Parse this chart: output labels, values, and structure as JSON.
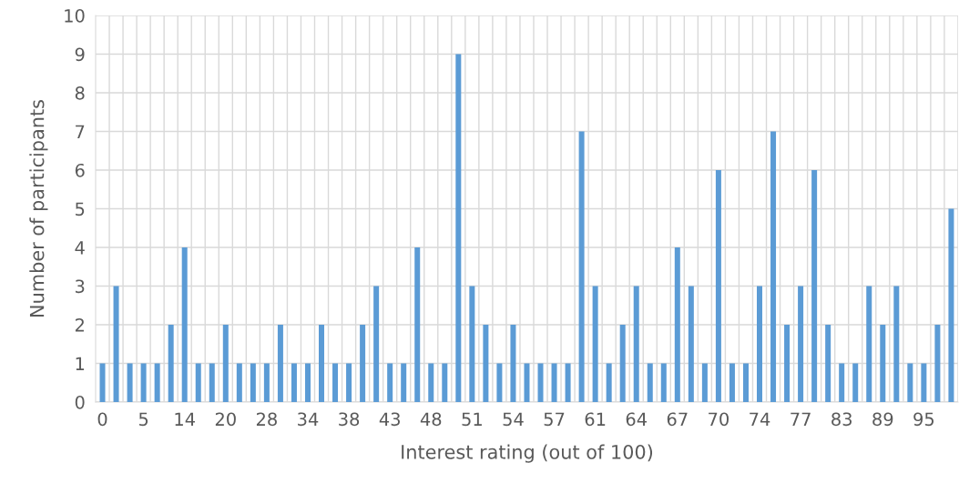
{
  "chart_data": {
    "type": "bar",
    "xlabel": "Interest rating (out of 100)",
    "ylabel": "Number of participants",
    "categories": [
      "0",
      null,
      null,
      "5",
      null,
      null,
      "14",
      null,
      null,
      "20",
      null,
      null,
      "28",
      null,
      null,
      "34",
      null,
      null,
      "38",
      null,
      null,
      "43",
      null,
      null,
      "48",
      null,
      null,
      "51",
      null,
      null,
      "54",
      null,
      null,
      "57",
      null,
      null,
      "61",
      null,
      null,
      "64",
      null,
      null,
      "67",
      null,
      null,
      "70",
      null,
      null,
      "74",
      null,
      null,
      "77",
      null,
      null,
      "83",
      null,
      null,
      "89",
      null,
      null,
      "95",
      null,
      null
    ],
    "values": [
      1,
      3,
      1,
      1,
      1,
      2,
      4,
      1,
      1,
      2,
      1,
      1,
      1,
      2,
      1,
      1,
      2,
      1,
      1,
      2,
      3,
      1,
      1,
      4,
      1,
      1,
      9,
      3,
      2,
      1,
      2,
      1,
      1,
      1,
      1,
      7,
      3,
      1,
      2,
      3,
      1,
      1,
      4,
      3,
      1,
      6,
      1,
      1,
      3,
      7,
      2,
      3,
      6,
      2,
      1,
      1,
      3,
      2,
      3,
      1,
      1,
      2,
      5
    ],
    "color": "#5b9bd5",
    "ylim": [
      0,
      10
    ],
    "yticks": [
      0,
      1,
      2,
      3,
      4,
      5,
      6,
      7,
      8,
      9,
      10
    ],
    "grid": true
  }
}
